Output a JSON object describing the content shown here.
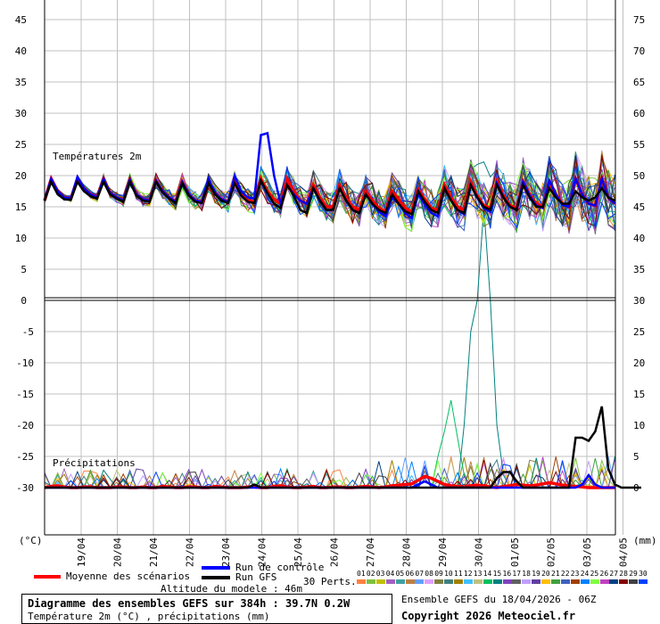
{
  "chart_data": {
    "type": "line",
    "temperature_panel": {
      "title": "Températures 2m",
      "ylim_left": [
        0,
        45
      ],
      "yticks_left": [
        "45",
        "40",
        "35",
        "30",
        "25",
        "20",
        "15",
        "10",
        "5",
        "0"
      ],
      "yticks_right": [
        "75",
        "70",
        "65",
        "60",
        "55",
        "50",
        "45",
        "40",
        "35",
        "30"
      ],
      "series": [
        {
          "name": "Moyenne des scénarios",
          "color": "#ff0000",
          "values": [
            16,
            19.5,
            17.5,
            16.5,
            16.3,
            19.5,
            18,
            17,
            16.5,
            19.5,
            17.2,
            16.5,
            16,
            19.3,
            17,
            16.2,
            16,
            19.2,
            17.5,
            16.5,
            15.8,
            19,
            17,
            16,
            15.8,
            19,
            17.2,
            16.2,
            15.8,
            19,
            17,
            16,
            15.8,
            19.5,
            17.5,
            16.2,
            15.5,
            19.5,
            17.5,
            16,
            15.5,
            18.5,
            16.5,
            15,
            15,
            18.5,
            16.5,
            15,
            14.5,
            17.5,
            16,
            14.8,
            14.2,
            17.5,
            16.2,
            14.8,
            14.2,
            17.8,
            16.2,
            14.8,
            14.5,
            18.5,
            16.5,
            15,
            14.5,
            19,
            16.8,
            15.2,
            14.8,
            19,
            16.8,
            15.2,
            14.8,
            19,
            17,
            15.5,
            15,
            19,
            17,
            15.5,
            15,
            19.5,
            17,
            15.5,
            15.2,
            19.5,
            16.5,
            15.5
          ]
        },
        {
          "name": "Run de contrôle",
          "color": "#0000ff",
          "values": [
            16,
            19.5,
            17.5,
            16.5,
            16.3,
            19.8,
            18,
            17,
            16.5,
            19.5,
            17.2,
            16.5,
            16,
            19.3,
            17,
            16.2,
            16,
            19.2,
            17.5,
            16.5,
            15.8,
            19,
            17,
            16,
            15.8,
            19.5,
            17.2,
            16.2,
            15.8,
            20,
            17.5,
            16.5,
            16.3,
            26.5,
            26.8,
            20,
            15.5,
            18.5,
            17,
            16,
            15.5,
            18,
            16,
            14.5,
            14.5,
            18,
            16,
            14.5,
            14,
            17,
            15.5,
            14.2,
            13.5,
            16.5,
            15.5,
            14,
            13.2,
            17,
            15.5,
            14,
            13.5,
            18,
            16,
            14.5,
            13.8,
            18.5,
            16.5,
            14.8,
            14.2,
            18.8,
            16.5,
            15,
            14.5,
            19,
            16.8,
            15.2,
            14.8,
            19.2,
            17,
            15.3,
            15,
            19.5,
            17,
            15.5,
            15.2,
            19.5,
            16.5,
            15.5
          ]
        },
        {
          "name": "Run GFS",
          "color": "#000000",
          "values": [
            16,
            19,
            17,
            16.2,
            16.1,
            19,
            17.5,
            16.7,
            16.3,
            19,
            17,
            16.3,
            15.8,
            19,
            16.8,
            16,
            15.8,
            19,
            17.3,
            16.3,
            15.6,
            18.8,
            16.8,
            15.8,
            15.6,
            18.8,
            17,
            16,
            15.6,
            18.8,
            16.8,
            15.8,
            15.6,
            19.2,
            17.2,
            15.5,
            14.8,
            18.5,
            16.8,
            14.5,
            14,
            18,
            16,
            14.5,
            14.5,
            18,
            16,
            14.5,
            14,
            17,
            15.5,
            14.5,
            14,
            17,
            15.5,
            14.3,
            13.8,
            17.5,
            15.8,
            14.5,
            14,
            18,
            16,
            14.5,
            14,
            18.5,
            16.5,
            15,
            14.5,
            18.5,
            16.5,
            15,
            14.5,
            18.5,
            16.5,
            15,
            15,
            18,
            16.5,
            15.5,
            15.5,
            17.5,
            16.5,
            16,
            16.5,
            18,
            16.5,
            16
          ]
        }
      ]
    },
    "precip_panel": {
      "title": "Précipitations",
      "ylim_left": [
        -30,
        0
      ],
      "yticks_left": [
        "0",
        "-5",
        "-10",
        "-15",
        "-20",
        "-25",
        "-30"
      ],
      "yticks_right": [
        "30",
        "25",
        "20",
        "15",
        "10",
        "5",
        "0"
      ],
      "unit_left": "(°C)",
      "unit_right": "(mm)",
      "series": [
        {
          "name": "Moyenne des scénarios",
          "color": "#ff0000",
          "values": [
            0,
            0.2,
            0.3,
            0.1,
            0,
            0,
            0.1,
            0.1,
            0,
            0,
            0,
            0.1,
            0.1,
            0,
            0,
            0.1,
            0,
            0,
            0.2,
            0.1,
            0,
            0,
            0.1,
            0.1,
            0,
            0,
            0.2,
            0.1,
            0,
            0,
            0,
            0.1,
            0.1,
            0,
            0,
            0.2,
            0.3,
            0.1,
            0,
            0,
            0.1,
            0.2,
            0,
            0,
            0.1,
            0.1,
            0,
            0,
            0.1,
            0.2,
            0.1,
            0,
            0.1,
            0.3,
            0.4,
            0.5,
            0.6,
            1.2,
            1.8,
            1.5,
            1,
            0.5,
            0.3,
            0.2,
            0.1,
            0.3,
            0.4,
            0.3,
            0.1,
            0,
            0.2,
            0.3,
            0.5,
            0.4,
            0.3,
            0.4,
            0.6,
            0.8,
            0.6,
            0.4,
            0.3,
            0.2,
            0.1,
            0,
            0,
            0,
            0,
            0
          ]
        },
        {
          "name": "Run de contrôle",
          "color": "#0000ff",
          "values": [
            0,
            0,
            0,
            0,
            0,
            0,
            0,
            0,
            0,
            0,
            0,
            0,
            0,
            0,
            0,
            0,
            0,
            0,
            0,
            0,
            0,
            0,
            0,
            0,
            0,
            0,
            0,
            0,
            0,
            0,
            0,
            0,
            0,
            0,
            0,
            0,
            0,
            0,
            0,
            0,
            0,
            0,
            0,
            0,
            0,
            0,
            0,
            0,
            0,
            0,
            0,
            0,
            0,
            0,
            0,
            0,
            0,
            0.5,
            1,
            0.5,
            0,
            0,
            0,
            0,
            0,
            0,
            0,
            0,
            0,
            0,
            0,
            0,
            0,
            0,
            0,
            0,
            0,
            0,
            0,
            0,
            0,
            0,
            0.5,
            2,
            0.5,
            0,
            0,
            0
          ]
        },
        {
          "name": "Run GFS",
          "color": "#000000",
          "values": [
            0,
            0,
            0,
            0,
            0,
            0,
            0,
            0,
            0,
            0,
            0,
            0,
            0,
            0,
            0,
            0,
            0,
            0,
            0,
            0,
            0,
            0,
            0,
            0,
            0,
            0,
            0,
            0,
            0,
            0,
            0,
            0,
            0.5,
            0,
            0,
            0,
            0,
            0,
            0,
            0,
            0,
            0,
            0,
            0,
            0,
            0,
            0,
            0,
            0,
            0,
            0,
            0,
            0,
            0,
            0,
            0,
            0,
            0,
            0,
            0,
            0,
            0,
            0,
            0,
            0,
            0,
            0,
            0,
            0,
            1.5,
            2.5,
            2.5,
            1,
            0,
            0,
            0,
            0,
            0,
            0,
            0,
            0,
            8,
            8,
            7.5,
            9,
            13,
            3,
            0.5,
            0,
            0,
            0,
            0
          ]
        }
      ]
    },
    "x_ticks": [
      "19/04",
      "20/04",
      "21/04",
      "22/04",
      "23/04",
      "24/04",
      "25/04",
      "26/04",
      "27/04",
      "28/04",
      "29/04",
      "30/04",
      "01/05",
      "02/05",
      "03/05",
      "04/05"
    ],
    "grid": true
  },
  "legend": {
    "mean_label": "Moyenne des scénarios",
    "control_label": "Run de contrôle",
    "gfs_label": "Run GFS",
    "perts_label": "30 Perts.",
    "perts_numbers": [
      "01",
      "02",
      "03",
      "04",
      "05",
      "06",
      "07",
      "08",
      "09",
      "10",
      "11",
      "12",
      "13",
      "14",
      "15",
      "16",
      "17",
      "18",
      "19",
      "20",
      "21",
      "22",
      "23",
      "24",
      "25",
      "26",
      "27",
      "28",
      "29",
      "30"
    ],
    "perts_colors": [
      "#ff8040",
      "#80c040",
      "#c0c000",
      "#a060c0",
      "#40a0a0",
      "#c08040",
      "#60a0ff",
      "#e0a0ff",
      "#808040",
      "#408080",
      "#a08000",
      "#40c0ff",
      "#c0c080",
      "#00c060",
      "#008080",
      "#8040c0",
      "#606060",
      "#c0a0ff",
      "#6040a0",
      "#ffc000",
      "#40a040",
      "#4060c0",
      "#a04000",
      "#0080ff",
      "#80ff40",
      "#c040c0",
      "#004080",
      "#800000",
      "#404040",
      "#0040ff"
    ]
  },
  "altitude": "Altitude du modele : 46m",
  "info": {
    "title": "Diagramme des ensembles GEFS sur 384h : 39.7N 0.2W",
    "subtitle": "Température 2m (°C) , précipitations (mm)",
    "ensemble": "Ensemble GEFS du 18/04/2026 - 06Z",
    "copyright": "Copyright 2026 Meteociel.fr"
  }
}
